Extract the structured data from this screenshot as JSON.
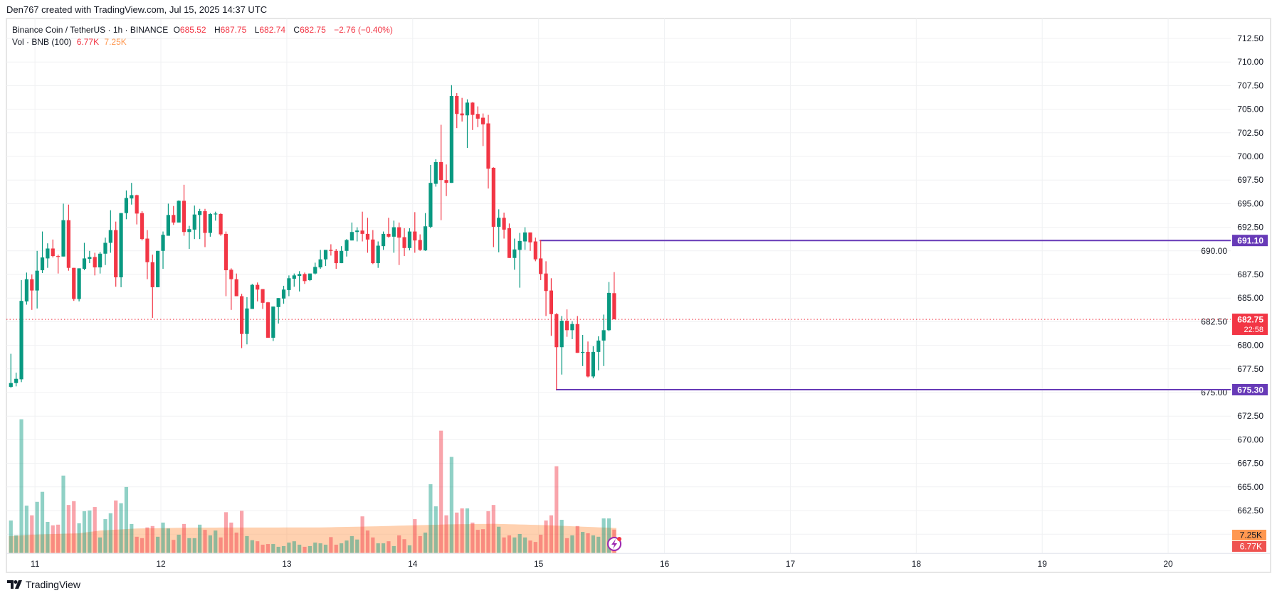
{
  "header": {
    "attribution": "Den767 created with TradingView.com, Jul 15, 2025 14:37 UTC"
  },
  "legend": {
    "symbol": "Binance Coin / TetherUS · 1h · BINANCE",
    "open_label": "O",
    "open": "685.52",
    "high_label": "H",
    "high": "687.75",
    "low_label": "L",
    "low": "682.74",
    "close_label": "C",
    "close": "682.75",
    "change": "−2.76 (−0.40%)",
    "volume_title": "Vol · BNB (100)",
    "volume_value": "6.77K",
    "volume_ma_value": "7.25K"
  },
  "footer": {
    "brand": "TradingView"
  },
  "colors": {
    "up": "#089981",
    "down": "#F23645",
    "hline": "#673AB7",
    "volume_ma": "#FF9850"
  },
  "chart_data": {
    "type": "candlestick",
    "interval": "1h",
    "first_candle_time": "2025-07-10 19:00",
    "ylim": [
      660,
      714
    ],
    "price_ticks": [
      "712.50",
      "710.00",
      "707.50",
      "705.00",
      "702.50",
      "700.00",
      "697.50",
      "695.00",
      "692.50",
      "690.00",
      "687.50",
      "685.00",
      "682.50",
      "680.00",
      "677.50",
      "675.00",
      "672.50",
      "670.00",
      "667.50",
      "665.00",
      "662.50"
    ],
    "x_ticks": [
      "11",
      "12",
      "13",
      "14",
      "15",
      "16",
      "17",
      "18",
      "19",
      "20"
    ],
    "grid": true,
    "horizontal_lines": [
      {
        "price": 691.1,
        "label": "691.10"
      },
      {
        "price": 675.3,
        "label": "675.30"
      }
    ],
    "last_price": {
      "price": 682.75,
      "label": "682.75",
      "countdown": "22:58"
    },
    "volume_labels": {
      "ma": "7.25K",
      "last": "6.77K"
    },
    "ohlc": [
      [
        675.6,
        679.1,
        675.5,
        676.0
      ],
      [
        676.0,
        677.1,
        675.65,
        676.45
      ],
      [
        676.4,
        686.9,
        676.1,
        684.7
      ],
      [
        684.65,
        687.7,
        684.3,
        687.0
      ],
      [
        687.0,
        687.5,
        683.75,
        685.8
      ],
      [
        685.8,
        690.0,
        683.9,
        687.9
      ],
      [
        687.95,
        692.05,
        687.65,
        689.3
      ],
      [
        689.2,
        690.8,
        688.2,
        690.25
      ],
      [
        690.25,
        691.2,
        689.3,
        689.45
      ],
      [
        689.45,
        689.6,
        687.6,
        689.4
      ],
      [
        689.4,
        695.0,
        689.4,
        693.25
      ],
      [
        693.25,
        694.9,
        687.9,
        688.2
      ],
      [
        688.2,
        688.2,
        684.7,
        684.9
      ],
      [
        684.9,
        688.15,
        684.65,
        688.15
      ],
      [
        688.1,
        690.85,
        687.95,
        689.2
      ],
      [
        689.15,
        690.0,
        688.7,
        689.35
      ],
      [
        689.35,
        689.8,
        687.4,
        688.25
      ],
      [
        688.25,
        689.9,
        687.6,
        689.7
      ],
      [
        689.7,
        691.4,
        688.5,
        690.85
      ],
      [
        690.85,
        694.3,
        689.8,
        692.2
      ],
      [
        692.2,
        693.1,
        686.2,
        687.2
      ],
      [
        687.2,
        694.0,
        686.15,
        694.0
      ],
      [
        694.0,
        696.4,
        693.35,
        695.6
      ],
      [
        695.55,
        697.2,
        694.9,
        695.9
      ],
      [
        695.9,
        695.95,
        692.8,
        693.95
      ],
      [
        694.0,
        694.2,
        691.1,
        691.25
      ],
      [
        691.3,
        692.2,
        687.0,
        688.8
      ],
      [
        688.8,
        689.6,
        682.9,
        686.15
      ],
      [
        686.15,
        690.0,
        686.15,
        690.0
      ],
      [
        690.0,
        692.05,
        688.1,
        691.7
      ],
      [
        691.6,
        695.0,
        691.6,
        693.8
      ],
      [
        693.8,
        694.75,
        692.75,
        693.0
      ],
      [
        693.0,
        695.35,
        693.0,
        695.3
      ],
      [
        695.3,
        697.0,
        691.6,
        692.0
      ],
      [
        692.0,
        692.65,
        690.2,
        692.3
      ],
      [
        692.25,
        694.8,
        691.25,
        693.85
      ],
      [
        693.8,
        694.45,
        691.25,
        694.2
      ],
      [
        694.2,
        694.45,
        690.4,
        691.9
      ],
      [
        691.9,
        694.0,
        691.5,
        693.9
      ],
      [
        693.9,
        694.15,
        693.2,
        693.95
      ],
      [
        693.9,
        694.0,
        691.6,
        691.75
      ],
      [
        691.8,
        692.05,
        685.2,
        687.95
      ],
      [
        688.0,
        688.15,
        683.75,
        687.0
      ],
      [
        687.0,
        687.6,
        685.2,
        685.2
      ],
      [
        685.2,
        685.45,
        679.7,
        681.2
      ],
      [
        681.2,
        685.1,
        680.1,
        683.9
      ],
      [
        683.85,
        686.5,
        683.85,
        686.4
      ],
      [
        686.4,
        686.65,
        684.65,
        685.9
      ],
      [
        685.95,
        685.95,
        683.85,
        684.5
      ],
      [
        684.55,
        684.6,
        680.8,
        680.8
      ],
      [
        680.8,
        684.1,
        680.45,
        684.1
      ],
      [
        684.05,
        685.0,
        682.3,
        685.0
      ],
      [
        684.95,
        686.3,
        684.4,
        685.9
      ],
      [
        685.85,
        687.4,
        685.2,
        687.1
      ],
      [
        687.05,
        687.6,
        686.2,
        687.4
      ],
      [
        687.35,
        687.85,
        685.7,
        687.55
      ],
      [
        687.55,
        687.7,
        686.5,
        686.8
      ],
      [
        686.9,
        687.6,
        686.8,
        687.6
      ],
      [
        687.6,
        688.75,
        687.5,
        688.3
      ],
      [
        688.25,
        690.1,
        688.1,
        689.1
      ],
      [
        689.1,
        690.1,
        688.4,
        690.1
      ],
      [
        690.1,
        690.7,
        689.5,
        690.0
      ],
      [
        690.0,
        690.2,
        688.1,
        688.7
      ],
      [
        688.7,
        690.5,
        688.7,
        690.0
      ],
      [
        690.0,
        691.25,
        689.4,
        691.15
      ],
      [
        691.1,
        693.0,
        691.1,
        692.0
      ],
      [
        692.0,
        692.5,
        691.0,
        692.15
      ],
      [
        692.15,
        694.15,
        691.0,
        691.8
      ],
      [
        691.8,
        693.5,
        689.8,
        691.2
      ],
      [
        691.2,
        692.2,
        688.6,
        688.7
      ],
      [
        688.7,
        691.0,
        688.2,
        690.55
      ],
      [
        690.5,
        692.05,
        690.1,
        691.8
      ],
      [
        691.8,
        693.5,
        691.4,
        691.5
      ],
      [
        691.5,
        693.2,
        689.8,
        692.5
      ],
      [
        692.5,
        693.0,
        688.5,
        691.4
      ],
      [
        691.45,
        692.4,
        689.45,
        690.3
      ],
      [
        690.3,
        692.4,
        690.05,
        692.05
      ],
      [
        692.05,
        694.1,
        689.8,
        691.1
      ],
      [
        691.15,
        691.75,
        690.0,
        690.1
      ],
      [
        690.05,
        694.0,
        690.0,
        692.6
      ],
      [
        692.55,
        699.1,
        692.4,
        697.2
      ],
      [
        697.1,
        699.7,
        696.8,
        699.4
      ],
      [
        699.4,
        703.35,
        693.25,
        697.5
      ],
      [
        697.5,
        699.15,
        695.8,
        697.2
      ],
      [
        697.2,
        707.55,
        697.2,
        706.4
      ],
      [
        706.4,
        706.7,
        703.0,
        704.5
      ],
      [
        704.55,
        706.2,
        703.7,
        704.35
      ],
      [
        704.35,
        706.05,
        700.9,
        705.7
      ],
      [
        705.7,
        705.75,
        702.8,
        704.4
      ],
      [
        704.5,
        705.3,
        703.1,
        704.0
      ],
      [
        704.1,
        704.55,
        701.1,
        703.4
      ],
      [
        703.5,
        704.4,
        696.6,
        698.7
      ],
      [
        698.8,
        698.85,
        690.4,
        692.55
      ],
      [
        692.55,
        694.4,
        689.85,
        693.5
      ],
      [
        693.5,
        694.05,
        691.3,
        692.25
      ],
      [
        692.4,
        692.9,
        689.25,
        689.25
      ],
      [
        689.25,
        691.3,
        688.0,
        690.15
      ],
      [
        690.1,
        691.9,
        686.1,
        691.05
      ],
      [
        691.0,
        692.5,
        690.1,
        691.95
      ],
      [
        691.95,
        691.95,
        690.0,
        690.9
      ],
      [
        691.0,
        691.4,
        688.9,
        689.1
      ],
      [
        689.2,
        691.15,
        686.9,
        687.55
      ],
      [
        687.6,
        688.9,
        683.1,
        685.75
      ],
      [
        685.8,
        687.1,
        681.0,
        683.3
      ],
      [
        683.3,
        683.4,
        675.3,
        679.8
      ],
      [
        679.8,
        683.1,
        676.9,
        682.6
      ],
      [
        682.6,
        683.8,
        680.9,
        681.6
      ],
      [
        681.6,
        682.55,
        680.65,
        682.25
      ],
      [
        682.25,
        683.1,
        679.2,
        679.2
      ],
      [
        679.2,
        681.1,
        677.8,
        679.3
      ],
      [
        679.3,
        680.4,
        676.6,
        676.7
      ],
      [
        676.7,
        679.9,
        676.5,
        679.3
      ],
      [
        679.3,
        680.95,
        677.35,
        680.5
      ],
      [
        680.5,
        683.25,
        677.8,
        681.6
      ],
      [
        681.6,
        686.7,
        681.5,
        685.55
      ],
      [
        685.52,
        687.75,
        682.74,
        682.75
      ]
    ],
    "volume_k": [
      9.4,
      5.1,
      38.7,
      13.7,
      10.9,
      14.8,
      17.7,
      9.0,
      8.0,
      8.2,
      22.4,
      13.9,
      15.0,
      8.6,
      12.1,
      12.3,
      13.3,
      4.5,
      9.8,
      11.5,
      15.2,
      14.4,
      19.1,
      8.4,
      4.7,
      4.3,
      7.4,
      7.8,
      4.7,
      8.8,
      7.1,
      3.8,
      5.3,
      8.4,
      4.3,
      4.3,
      8.2,
      6.7,
      5.1,
      6.5,
      4.5,
      11.8,
      8.8,
      5.9,
      12.2,
      4.9,
      3.7,
      3.4,
      2.4,
      2.6,
      2.6,
      1.8,
      2.0,
      3.0,
      3.4,
      2.4,
      1.8,
      2.0,
      3.0,
      2.8,
      2.4,
      4.6,
      2.4,
      2.8,
      3.6,
      4.9,
      3.9,
      10.6,
      6.5,
      4.5,
      2.8,
      2.8,
      3.4,
      2.0,
      5.1,
      4.0,
      2.2,
      9.8,
      4.9,
      5.9,
      19.9,
      13.5,
      35.4,
      10.9,
      27.8,
      11.7,
      12.9,
      12.9,
      8.8,
      6.7,
      6.9,
      12.1,
      13.9,
      7.6,
      4.5,
      5.1,
      4.5,
      5.5,
      4.5,
      3.6,
      3.2,
      5.3,
      9.4,
      10.9,
      25.1,
      9.6,
      4.3,
      5.1,
      7.8,
      6.1,
      5.7,
      5.1,
      4.7,
      10.0,
      10.0,
      6.77
    ],
    "volume_ma_k": [
      [
        1,
        4.9
      ],
      [
        5,
        5.3
      ],
      [
        14,
        5.7
      ],
      [
        18,
        6.5
      ],
      [
        25,
        7.1
      ],
      [
        36,
        7.35
      ],
      [
        60,
        7.4
      ],
      [
        70,
        7.7
      ],
      [
        85,
        8.3
      ],
      [
        93,
        8.45
      ],
      [
        102,
        8.1
      ],
      [
        116,
        7.25
      ]
    ]
  }
}
